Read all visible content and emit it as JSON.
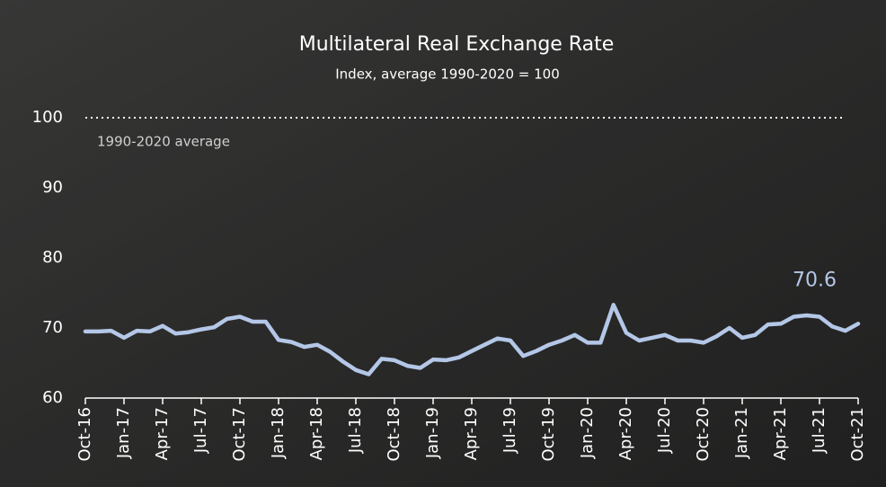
{
  "chart_data": {
    "type": "line",
    "title": "Multilateral Real Exchange Rate",
    "subtitle": "Index, average 1990-2020 = 100",
    "categories": [
      "Oct-16",
      null,
      null,
      "Jan-17",
      null,
      null,
      "Apr-17",
      null,
      null,
      "Jul-17",
      null,
      null,
      "Oct-17",
      null,
      null,
      "Jan-18",
      null,
      null,
      "Apr-18",
      null,
      null,
      "Jul-18",
      null,
      null,
      "Oct-18",
      null,
      null,
      "Jan-19",
      null,
      null,
      "Apr-19",
      null,
      null,
      "Jul-19",
      null,
      null,
      "Oct-19",
      null,
      null,
      "Jan-20",
      null,
      null,
      "Apr-20",
      null,
      null,
      "Jul-20",
      null,
      null,
      "Oct-20",
      null,
      null,
      "Jan-21",
      null,
      null,
      "Apr-21",
      null,
      null,
      "Jul-21",
      null,
      null,
      "Oct-21"
    ],
    "values": [
      69.5,
      69.5,
      69.6,
      68.6,
      69.6,
      69.5,
      70.3,
      69.2,
      69.4,
      69.8,
      70.1,
      71.3,
      71.6,
      70.9,
      70.9,
      68.3,
      68.0,
      67.3,
      67.6,
      66.6,
      65.2,
      64.0,
      63.4,
      65.6,
      65.4,
      64.6,
      64.3,
      65.5,
      65.4,
      65.8,
      66.7,
      67.6,
      68.5,
      68.2,
      66.0,
      66.7,
      67.6,
      68.2,
      69.0,
      67.9,
      67.9,
      73.3,
      69.3,
      68.2,
      68.6,
      69.0,
      68.2,
      68.2,
      67.9,
      68.8,
      70.0,
      68.6,
      69.0,
      70.5,
      70.6,
      71.6,
      71.8,
      71.6,
      70.2,
      69.6,
      70.6
    ],
    "color": "#b4c7e7",
    "ylim": [
      60,
      100
    ],
    "yticks": [
      60,
      70,
      80,
      90,
      100
    ],
    "reference_line": {
      "value": 100,
      "label": "1990-2020 average"
    }
  }
}
